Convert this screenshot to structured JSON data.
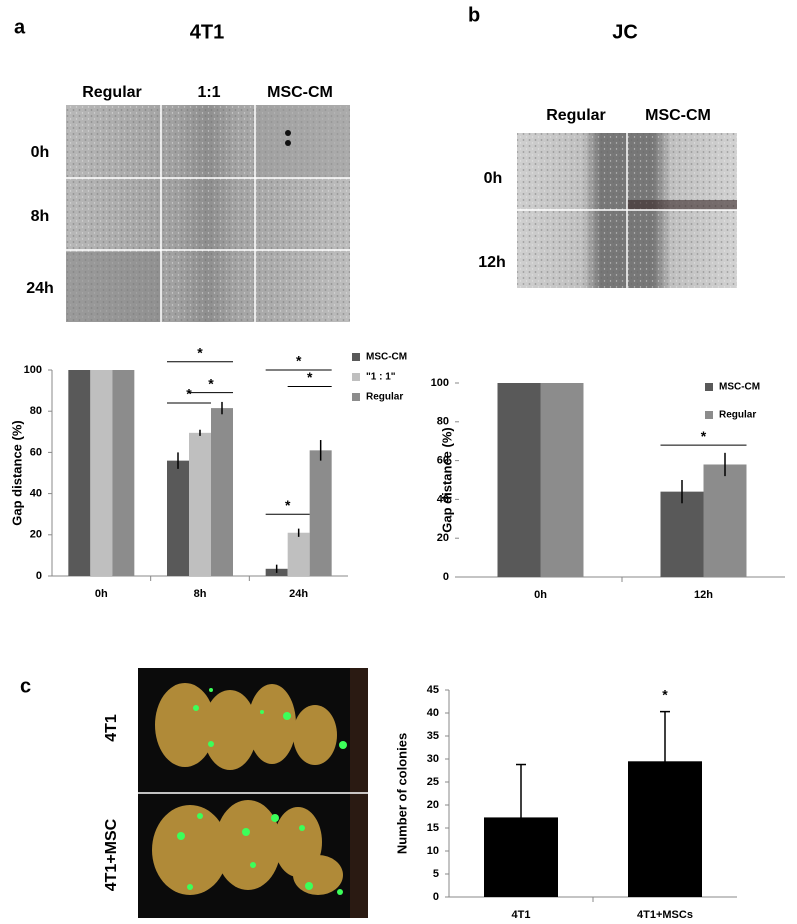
{
  "panels": {
    "a": {
      "label": "a",
      "title": "4T1",
      "columns": [
        "Regular",
        "1:1",
        "MSC-CM"
      ],
      "rows": [
        "0h",
        "8h",
        "24h"
      ]
    },
    "b": {
      "label": "b",
      "title": "JC",
      "columns": [
        "Regular",
        "MSC-CM"
      ],
      "rows": [
        "0h",
        "12h"
      ]
    },
    "c": {
      "label": "c",
      "rows": [
        "4T1",
        "4T1+MSC"
      ]
    }
  },
  "chart_data": [
    {
      "type": "bar",
      "ylabel": "Gap distance (%)",
      "categories": [
        "0h",
        "8h",
        "24h"
      ],
      "series": [
        {
          "name": "MSC-CM",
          "color": "#595959",
          "values": [
            100,
            56,
            3.5
          ],
          "errors": [
            0,
            4,
            2
          ]
        },
        {
          "name": "\"1 : 1\"",
          "color": "#bfbfbf",
          "values": [
            100,
            69.5,
            21
          ],
          "errors": [
            0,
            1.5,
            2
          ]
        },
        {
          "name": "Regular",
          "color": "#8c8c8c",
          "values": [
            100,
            81.5,
            61
          ],
          "errors": [
            0,
            3,
            5
          ]
        }
      ],
      "ylim": [
        0,
        100
      ],
      "yticks": [
        0,
        20,
        40,
        60,
        80,
        100
      ],
      "significance_label": "*"
    },
    {
      "type": "bar",
      "ylabel": "Gap distance (%)",
      "categories": [
        "0h",
        "12h"
      ],
      "series": [
        {
          "name": "MSC-CM",
          "color": "#595959",
          "values": [
            100,
            44
          ],
          "errors": [
            0,
            6
          ]
        },
        {
          "name": "Regular",
          "color": "#8c8c8c",
          "values": [
            100,
            58
          ],
          "errors": [
            0,
            6
          ]
        }
      ],
      "ylim": [
        0,
        100
      ],
      "yticks": [
        0,
        20,
        40,
        60,
        80,
        100
      ],
      "significance_label": "*"
    },
    {
      "type": "bar",
      "ylabel": "Number of colonies",
      "categories": [
        "4T1",
        "4T1+MSCs"
      ],
      "series": [
        {
          "color": "#000000",
          "values": [
            17.3,
            29.5
          ],
          "errors": [
            11.5,
            10.8
          ]
        }
      ],
      "ylim": [
        0,
        45
      ],
      "yticks": [
        0,
        5,
        10,
        15,
        20,
        25,
        30,
        35,
        40,
        45
      ],
      "significance_label": "*"
    }
  ]
}
